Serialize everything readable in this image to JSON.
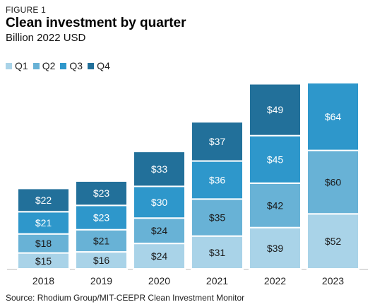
{
  "figure_label": "FIGURE 1",
  "source": "Source: Rhodium Group/MIT-CEEPR Clean Investment Monitor",
  "chart_data": {
    "type": "bar",
    "stacked": true,
    "title": "Clean investment by quarter",
    "subtitle": "Billion 2022 USD",
    "categories": [
      "2018",
      "2019",
      "2020",
      "2021",
      "2022",
      "2023"
    ],
    "series": [
      {
        "name": "Q1",
        "color": "#a9d3e8",
        "values": [
          15,
          16,
          24,
          31,
          39,
          52
        ],
        "labels": [
          "$15",
          "$16",
          "$24",
          "$31",
          "$39",
          "$52"
        ],
        "label_color": "#1a1a1a"
      },
      {
        "name": "Q2",
        "color": "#68b2d6",
        "values": [
          18,
          21,
          24,
          35,
          42,
          60
        ],
        "labels": [
          "$18",
          "$21",
          "$24",
          "$35",
          "$42",
          "$60"
        ],
        "label_color": "#1a1a1a"
      },
      {
        "name": "Q3",
        "color": "#2e97cb",
        "values": [
          21,
          23,
          30,
          36,
          45,
          64
        ],
        "labels": [
          "$21",
          "$23",
          "$30",
          "$36",
          "$45",
          "$64"
        ],
        "label_color": "#ffffff"
      },
      {
        "name": "Q4",
        "color": "#22709a",
        "values": [
          22,
          23,
          33,
          37,
          49,
          null
        ],
        "labels": [
          "$22",
          "$23",
          "$33",
          "$37",
          "$49",
          ""
        ],
        "label_color": "#ffffff"
      }
    ],
    "ylim": [
      0,
      176
    ],
    "grid": false,
    "legend_position": "top-left"
  }
}
